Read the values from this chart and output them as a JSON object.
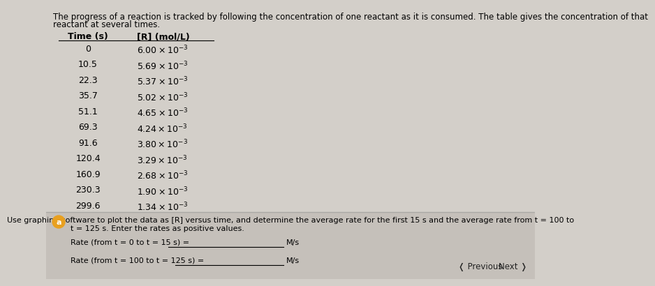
{
  "background_color": "#d3cfc9",
  "header_text_line1": "The progress of a reaction is tracked by following the concentration of one reactant as it is consumed. The table gives the concentration of that",
  "header_text_line2": "reactant at several times.",
  "col1_header": "Time (s)",
  "col2_header": "[R] (mol/L)",
  "table_data": [
    [
      "0",
      "6.00",
      "-3"
    ],
    [
      "10.5",
      "5.69",
      "-3"
    ],
    [
      "22.3",
      "5.37",
      "-3"
    ],
    [
      "35.7",
      "5.02",
      "-3"
    ],
    [
      "51.1",
      "4.65",
      "-3"
    ],
    [
      "69.3",
      "4.24",
      "-3"
    ],
    [
      "91.6",
      "3.80",
      "-3"
    ],
    [
      "120.4",
      "3.29",
      "-3"
    ],
    [
      "160.9",
      "2.68",
      "-3"
    ],
    [
      "230.3",
      "1.90",
      "-3"
    ],
    [
      "299.6",
      "1.34",
      "-3"
    ]
  ],
  "bottom_bg": "#c5c0ba",
  "circle_label": "a",
  "circle_color": "#e8a020",
  "body_text_line1": "Use graphing software to plot the data as [R] versus time, and determine the average rate for the first 15 s and the average rate from t = 100 to",
  "body_text_line2": "t = 125 s. Enter the rates as positive values.",
  "rate1_label": "Rate (from t = 0 to t = 15 s) =",
  "rate2_label": "Rate (from t = 100 to t = 125 s) =",
  "unit": "M/s",
  "prev_label": "Previous",
  "next_label": "Next",
  "table_font_size": 9.0,
  "header_font_size": 8.5,
  "body_font_size": 8.0,
  "nav_font_size": 8.5
}
